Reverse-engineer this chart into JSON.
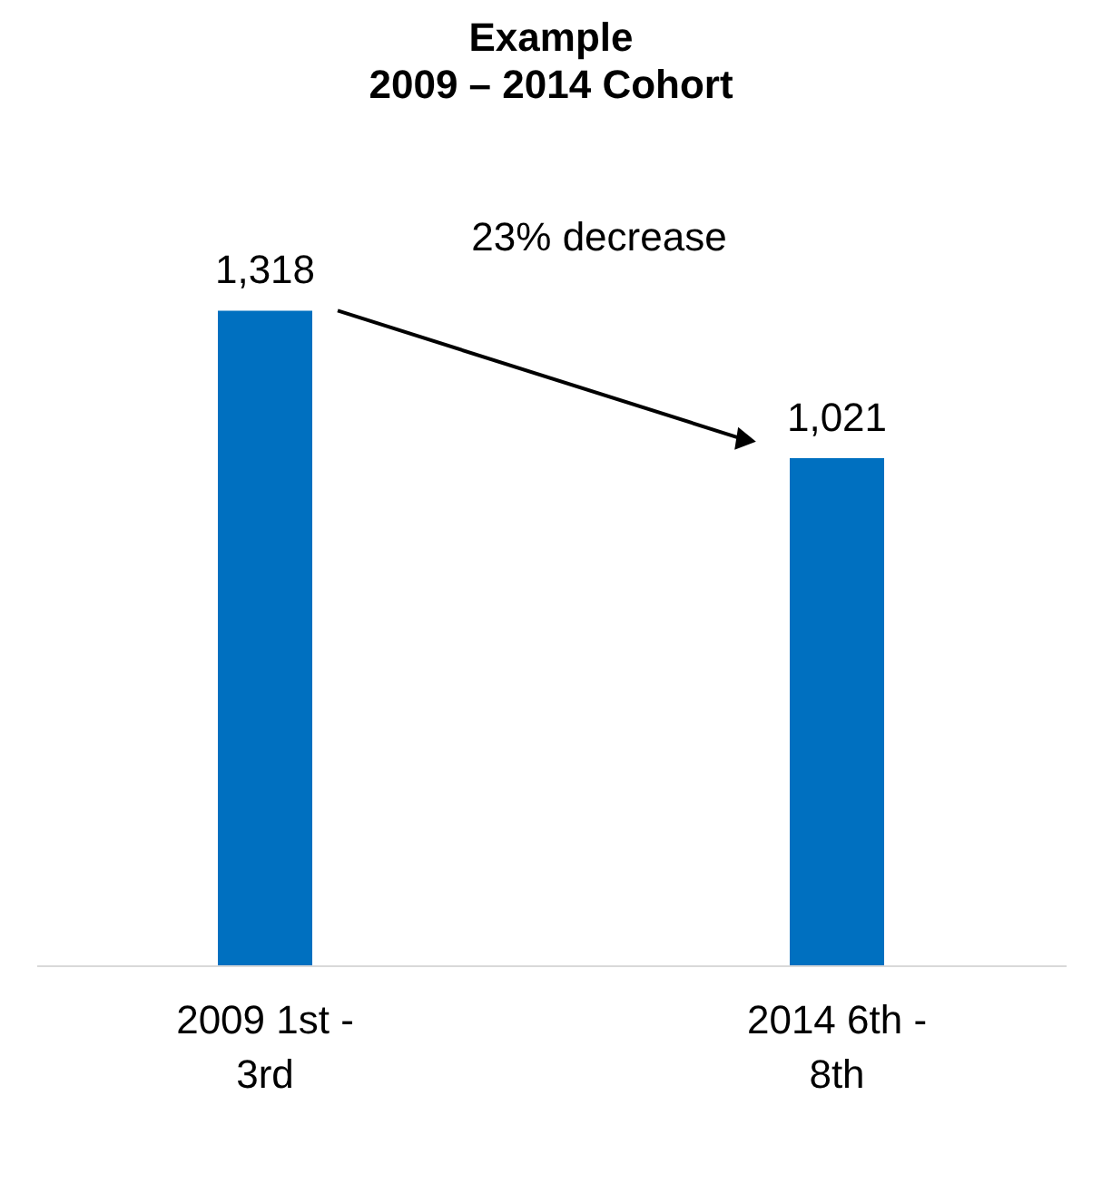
{
  "chart_data": {
    "type": "bar",
    "title": "Example",
    "subtitle": "2009 – 2014 Cohort",
    "categories": [
      "2009 1st - 3rd",
      "2014 6th - 8th"
    ],
    "values": [
      1318,
      1021
    ],
    "color": "#0070c0",
    "value_labels": [
      "1,318",
      "1,021"
    ],
    "annotations": [
      "23% decrease"
    ],
    "grid": false
  }
}
